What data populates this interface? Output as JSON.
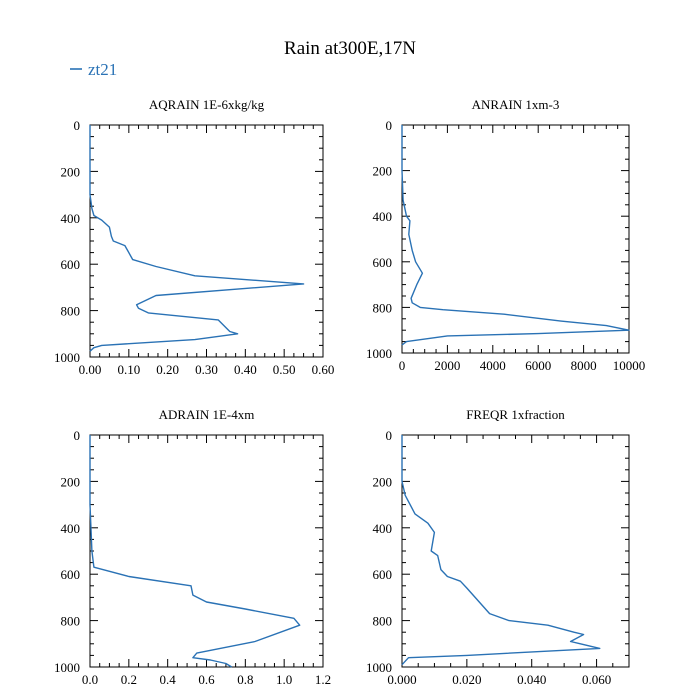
{
  "figure": {
    "title": "Rain at300E,17N",
    "legend": {
      "label": "zt21",
      "color": "#2a72b5"
    }
  },
  "chart_data": [
    {
      "type": "line",
      "title": "AQRAIN  1E-6xkg/kg",
      "xlabel": "",
      "ylabel": "",
      "xlim": [
        0,
        0.6
      ],
      "ylim": [
        1000,
        0
      ],
      "xticks": [
        0,
        0.1,
        0.2,
        0.3,
        0.4,
        0.5,
        0.6
      ],
      "xtick_labels": [
        "0.00",
        "0.10",
        "0.20",
        "0.30",
        "0.40",
        "0.50",
        "0.60"
      ],
      "yticks": [
        0,
        200,
        400,
        600,
        800,
        1000
      ],
      "ytick_labels": [
        "0",
        "200",
        "400",
        "600",
        "800",
        "1000"
      ],
      "series": [
        {
          "name": "zt21",
          "x": [
            0,
            0,
            0,
            0.005,
            0.01,
            0.03,
            0.05,
            0.055,
            0.06,
            0.09,
            0.11,
            0.17,
            0.27,
            0.55,
            0.17,
            0.12,
            0.125,
            0.15,
            0.33,
            0.36,
            0.38,
            0.27,
            0.03,
            0.01,
            0
          ],
          "y": [
            0,
            100,
            300,
            360,
            390,
            410,
            440,
            480,
            500,
            520,
            580,
            610,
            650,
            685,
            735,
            775,
            790,
            810,
            840,
            890,
            900,
            925,
            950,
            960,
            975
          ]
        }
      ]
    },
    {
      "type": "line",
      "title": "ANRAIN  1xm-3",
      "xlabel": "",
      "ylabel": "",
      "xlim": [
        0,
        10000
      ],
      "ylim": [
        1000,
        0
      ],
      "xticks": [
        0,
        2000,
        4000,
        6000,
        8000,
        10000
      ],
      "xtick_labels": [
        "0",
        "2000",
        "4000",
        "6000",
        "8000",
        "10000"
      ],
      "yticks": [
        0,
        200,
        400,
        600,
        800,
        1000
      ],
      "ytick_labels": [
        "0",
        "200",
        "400",
        "600",
        "800",
        "1000"
      ],
      "series": [
        {
          "name": "zt21",
          "x": [
            0,
            0,
            50,
            200,
            350,
            300,
            450,
            600,
            900,
            650,
            400,
            450,
            800,
            1800,
            4500,
            7000,
            9000,
            10000,
            6000,
            2000,
            200,
            0
          ],
          "y": [
            0,
            200,
            330,
            400,
            420,
            480,
            550,
            600,
            650,
            700,
            760,
            780,
            800,
            810,
            830,
            860,
            880,
            900,
            915,
            925,
            950,
            965
          ]
        }
      ]
    },
    {
      "type": "line",
      "title": "ADRAIN  1E-4xm",
      "xlabel": "",
      "ylabel": "",
      "xlim": [
        0,
        1.2
      ],
      "ylim": [
        1000,
        0
      ],
      "xticks": [
        0,
        0.2,
        0.4,
        0.6,
        0.8,
        1.0,
        1.2
      ],
      "xtick_labels": [
        "0.0",
        "0.2",
        "0.4",
        "0.6",
        "0.8",
        "1.0",
        "1.2"
      ],
      "yticks": [
        0,
        200,
        400,
        600,
        800,
        1000
      ],
      "ytick_labels": [
        "0",
        "200",
        "400",
        "600",
        "800",
        "1000"
      ],
      "series": [
        {
          "name": "zt21",
          "x": [
            0,
            0,
            0.01,
            0.02,
            0.2,
            0.52,
            0.53,
            0.6,
            0.8,
            1.05,
            1.08,
            0.85,
            0.55,
            0.53,
            0.62,
            0.7,
            0.73
          ],
          "y": [
            0,
            300,
            500,
            570,
            610,
            650,
            690,
            720,
            750,
            790,
            820,
            890,
            940,
            960,
            970,
            985,
            1000
          ]
        }
      ]
    },
    {
      "type": "line",
      "title": "FREQR  1xfraction",
      "xlabel": "",
      "ylabel": "",
      "xlim": [
        0,
        0.07
      ],
      "ylim": [
        1000,
        0
      ],
      "xticks": [
        0,
        0.02,
        0.04,
        0.06
      ],
      "xtick_labels": [
        "0.000",
        "0.020",
        "0.040",
        "0.060"
      ],
      "yticks": [
        0,
        200,
        400,
        600,
        800,
        1000
      ],
      "ytick_labels": [
        "0",
        "200",
        "400",
        "600",
        "800",
        "1000"
      ],
      "series": [
        {
          "name": "zt21",
          "x": [
            0,
            0,
            0.001,
            0.004,
            0.008,
            0.01,
            0.009,
            0.011,
            0.012,
            0.014,
            0.018,
            0.02,
            0.027,
            0.033,
            0.045,
            0.053,
            0.056,
            0.052,
            0.055,
            0.061,
            0.02,
            0.002,
            0
          ],
          "y": [
            0,
            200,
            260,
            340,
            380,
            420,
            500,
            520,
            580,
            610,
            630,
            660,
            770,
            800,
            820,
            850,
            860,
            890,
            900,
            920,
            950,
            960,
            990
          ]
        }
      ]
    }
  ]
}
